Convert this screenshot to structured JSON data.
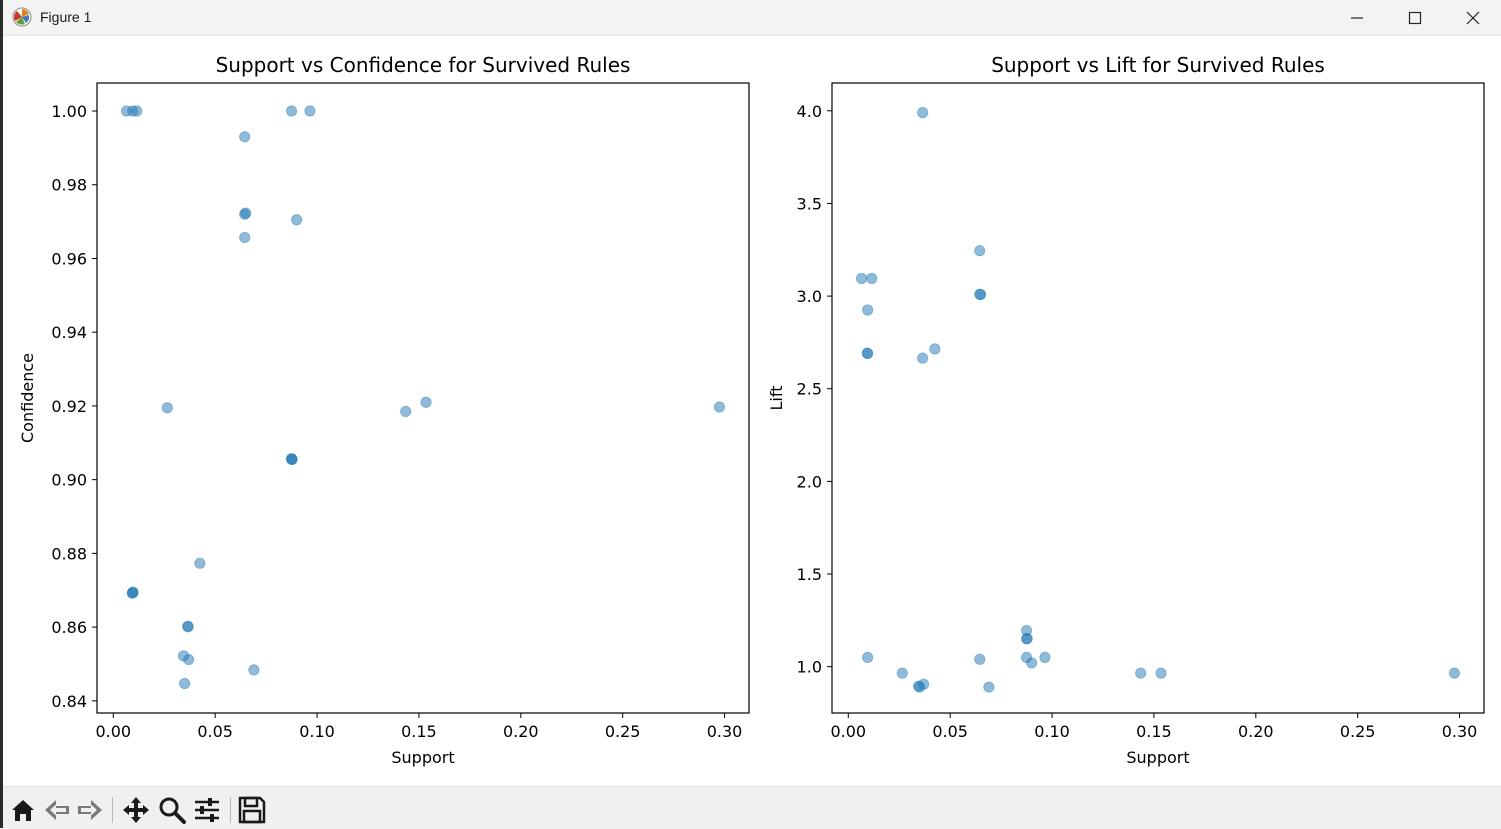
{
  "window": {
    "title": "Figure 1",
    "icons": [
      "matplotlib-app-icon",
      "minimize-icon",
      "maximize-icon",
      "close-icon"
    ]
  },
  "toolbar": {
    "buttons": [
      "home-icon",
      "back-icon",
      "forward-icon",
      "pan-icon",
      "zoom-icon",
      "configure-subplots-icon",
      "save-icon"
    ]
  },
  "colors": {
    "point": "#1f77b4",
    "axis": "#000000",
    "background": "#ffffff"
  },
  "chart_data": [
    {
      "type": "scatter",
      "title": "Support vs Confidence for Survived Rules",
      "xlabel": "Support",
      "ylabel": "Confidence",
      "xlim": [
        -0.008,
        0.312
      ],
      "ylim": [
        0.8367,
        1.0076
      ],
      "xticks": [
        0.0,
        0.05,
        0.1,
        0.15,
        0.2,
        0.25,
        0.3
      ],
      "xtick_labels": [
        "0.00",
        "0.05",
        "0.10",
        "0.15",
        "0.20",
        "0.25",
        "0.30"
      ],
      "yticks": [
        0.84,
        0.86,
        0.88,
        0.9,
        0.92,
        0.94,
        0.96,
        0.98,
        1.0
      ],
      "ytick_labels": [
        "0.84",
        "0.86",
        "0.88",
        "0.90",
        "0.92",
        "0.94",
        "0.96",
        "0.98",
        "1.00"
      ],
      "grid": false,
      "alpha": 0.5,
      "points": [
        {
          "x": 0.0065,
          "y": 1.0
        },
        {
          "x": 0.0095,
          "y": 1.0
        },
        {
          "x": 0.0115,
          "y": 1.0
        },
        {
          "x": 0.0875,
          "y": 1.0
        },
        {
          "x": 0.0965,
          "y": 1.0
        },
        {
          "x": 0.0645,
          "y": 0.993
        },
        {
          "x": 0.065,
          "y": 0.9723
        },
        {
          "x": 0.0645,
          "y": 0.972
        },
        {
          "x": 0.09,
          "y": 0.9705
        },
        {
          "x": 0.0645,
          "y": 0.9657
        },
        {
          "x": 0.0265,
          "y": 0.9195
        },
        {
          "x": 0.1435,
          "y": 0.9185
        },
        {
          "x": 0.1535,
          "y": 0.921
        },
        {
          "x": 0.2975,
          "y": 0.9197
        },
        {
          "x": 0.0875,
          "y": 0.9055
        },
        {
          "x": 0.0875,
          "y": 0.9057
        },
        {
          "x": 0.0878,
          "y": 0.9055
        },
        {
          "x": 0.0425,
          "y": 0.8773
        },
        {
          "x": 0.0095,
          "y": 0.8693
        },
        {
          "x": 0.0097,
          "y": 0.8695
        },
        {
          "x": 0.0093,
          "y": 0.8692
        },
        {
          "x": 0.0365,
          "y": 0.8602
        },
        {
          "x": 0.0368,
          "y": 0.8601
        },
        {
          "x": 0.0345,
          "y": 0.8522
        },
        {
          "x": 0.037,
          "y": 0.8512
        },
        {
          "x": 0.069,
          "y": 0.8484
        },
        {
          "x": 0.035,
          "y": 0.8447
        }
      ]
    },
    {
      "type": "scatter",
      "title": "Support vs Lift for Survived Rules",
      "xlabel": "Support",
      "ylabel": "Lift",
      "xlim": [
        -0.008,
        0.312
      ],
      "ylim": [
        0.75,
        4.15
      ],
      "xticks": [
        0.0,
        0.05,
        0.1,
        0.15,
        0.2,
        0.25,
        0.3
      ],
      "xtick_labels": [
        "0.00",
        "0.05",
        "0.10",
        "0.15",
        "0.20",
        "0.25",
        "0.30"
      ],
      "yticks": [
        1.0,
        1.5,
        2.0,
        2.5,
        3.0,
        3.5,
        4.0
      ],
      "ytick_labels": [
        "1.0",
        "1.5",
        "2.0",
        "2.5",
        "3.0",
        "3.5",
        "4.0"
      ],
      "grid": false,
      "alpha": 0.5,
      "points": [
        {
          "x": 0.0365,
          "y": 3.99
        },
        {
          "x": 0.0645,
          "y": 3.245
        },
        {
          "x": 0.0065,
          "y": 3.095
        },
        {
          "x": 0.0115,
          "y": 3.095
        },
        {
          "x": 0.0645,
          "y": 3.01
        },
        {
          "x": 0.065,
          "y": 3.008
        },
        {
          "x": 0.0095,
          "y": 2.925
        },
        {
          "x": 0.0095,
          "y": 2.69
        },
        {
          "x": 0.0093,
          "y": 2.692
        },
        {
          "x": 0.0425,
          "y": 2.715
        },
        {
          "x": 0.0365,
          "y": 2.665
        },
        {
          "x": 0.0875,
          "y": 1.195
        },
        {
          "x": 0.0875,
          "y": 1.15
        },
        {
          "x": 0.0878,
          "y": 1.152
        },
        {
          "x": 0.0095,
          "y": 1.05
        },
        {
          "x": 0.0875,
          "y": 1.05
        },
        {
          "x": 0.0965,
          "y": 1.05
        },
        {
          "x": 0.0645,
          "y": 1.04
        },
        {
          "x": 0.09,
          "y": 1.02
        },
        {
          "x": 0.0265,
          "y": 0.965
        },
        {
          "x": 0.1435,
          "y": 0.965
        },
        {
          "x": 0.1535,
          "y": 0.965
        },
        {
          "x": 0.2975,
          "y": 0.965
        },
        {
          "x": 0.037,
          "y": 0.905
        },
        {
          "x": 0.0345,
          "y": 0.895
        },
        {
          "x": 0.035,
          "y": 0.89
        },
        {
          "x": 0.069,
          "y": 0.89
        }
      ]
    }
  ]
}
